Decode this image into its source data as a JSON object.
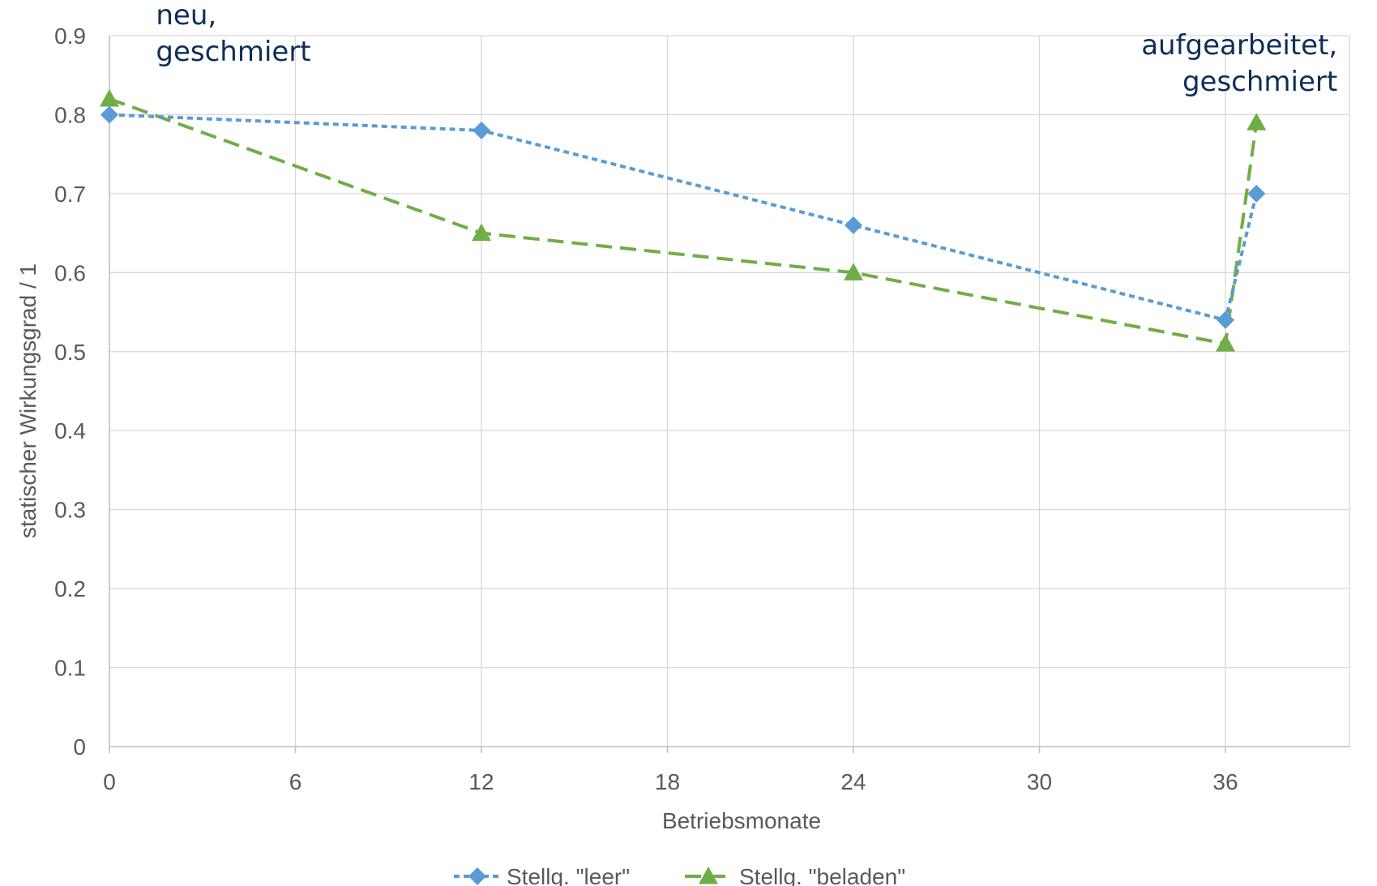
{
  "chart_data": {
    "type": "line",
    "xlabel": "Betriebsmonate",
    "ylabel": "statischer Wirkungsgrad / 1",
    "xlim": [
      0,
      40
    ],
    "ylim": [
      0,
      0.9
    ],
    "xticks": [
      "0",
      "6",
      "12",
      "18",
      "24",
      "30",
      "36"
    ],
    "yticks": [
      "0",
      "0.1",
      "0.2",
      "0.3",
      "0.4",
      "0.5",
      "0.6",
      "0.7",
      "0.8",
      "0.9"
    ],
    "grid": true,
    "legend_position": "bottom",
    "series": [
      {
        "name": "Stellg. \"leer\"",
        "color": "#5b9bd5",
        "marker": "diamond",
        "line": "dotted",
        "x": [
          0,
          12,
          24,
          36,
          37
        ],
        "y": [
          0.8,
          0.78,
          0.66,
          0.54,
          0.7
        ]
      },
      {
        "name": "Stellg. \"beladen\"",
        "color": "#70ad47",
        "marker": "triangle",
        "line": "dashed",
        "x": [
          0,
          12,
          24,
          36,
          37
        ],
        "y": [
          0.82,
          0.65,
          0.6,
          0.51,
          0.79
        ]
      }
    ],
    "annotations": [
      {
        "lines": [
          "neu,",
          "geschmiert"
        ],
        "x": 1.5,
        "y": 0.9
      },
      {
        "lines": [
          "aufgearbeitet,",
          "geschmiert"
        ],
        "x": 39.3,
        "y": 0.9
      }
    ]
  }
}
